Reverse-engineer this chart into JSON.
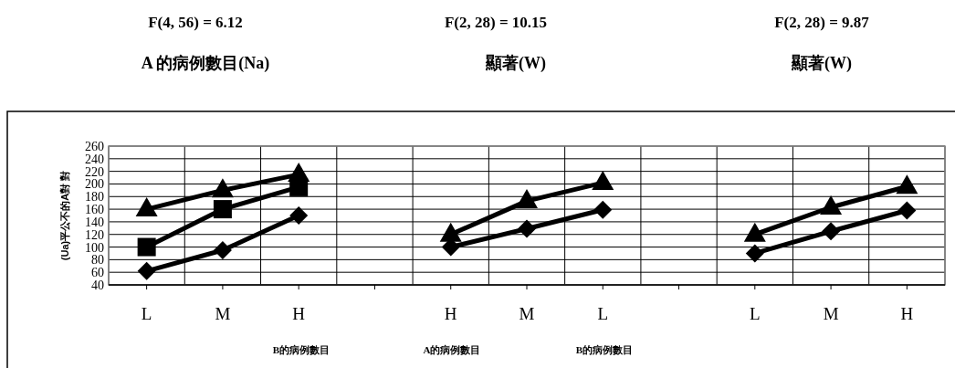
{
  "chart_data": {
    "type": "line",
    "ylabel": "(Ua)平公不的A對 對",
    "categories": [
      "L",
      "M",
      "H",
      null,
      "H",
      "M",
      "L",
      null,
      "L",
      "M",
      "H"
    ],
    "series": [
      {
        "color": "#000000",
        "marker": "triangle",
        "values": [
          160,
          190,
          215,
          null,
          120,
          173,
          202,
          null,
          120,
          163,
          196
        ]
      },
      {
        "color": "#000000",
        "marker": "square",
        "values": [
          100,
          160,
          195,
          null,
          null,
          null,
          null,
          null,
          null,
          null,
          null
        ]
      },
      {
        "color": "#000000",
        "marker": "diamond",
        "values": [
          62,
          95,
          150,
          null,
          100,
          129,
          159,
          null,
          90,
          125,
          158
        ]
      }
    ],
    "ylim": [
      40,
      260
    ],
    "yticks": [
      40,
      60,
      80,
      100,
      120,
      140,
      160,
      180,
      200,
      220,
      240,
      260
    ],
    "grid": true,
    "annotations": [
      "F(4, 56) = 6.12",
      "F(2, 28) = 10.15",
      "F(2, 28) = 9.87",
      "A 的病例數目(Na)",
      "顯著(W)",
      "顯著(W)",
      "B的病例數目",
      "A的病例數目",
      "B的病例數目"
    ]
  }
}
